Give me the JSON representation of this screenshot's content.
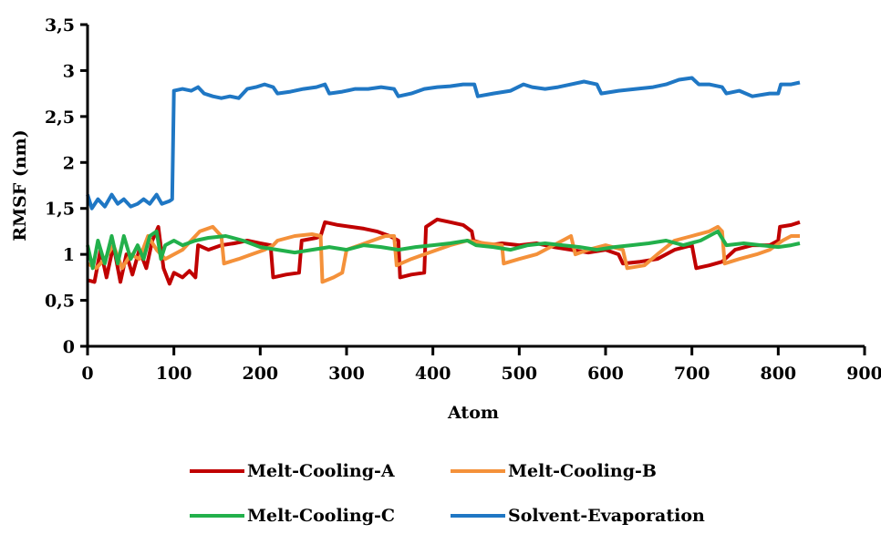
{
  "chart_data": {
    "type": "line",
    "xlabel": "Atom",
    "ylabel": "RMSF (nm)",
    "xlim": [
      0,
      900
    ],
    "ylim": [
      0,
      3.5
    ],
    "x_ticks": [
      "0",
      "100",
      "200",
      "300",
      "400",
      "500",
      "600",
      "700",
      "800",
      "900"
    ],
    "y_ticks": [
      "0",
      "0,5",
      "1",
      "1,5",
      "2",
      "2,5",
      "3",
      "3,5"
    ],
    "grid": false,
    "legend_position": "bottom",
    "series": [
      {
        "name": "Melt-Cooling-A",
        "color": "#c00000",
        "points": [
          [
            0,
            0.72
          ],
          [
            8,
            0.7
          ],
          [
            15,
            1.05
          ],
          [
            22,
            0.75
          ],
          [
            30,
            1.1
          ],
          [
            38,
            0.7
          ],
          [
            45,
            1.0
          ],
          [
            52,
            0.78
          ],
          [
            60,
            1.05
          ],
          [
            68,
            0.85
          ],
          [
            75,
            1.15
          ],
          [
            82,
            1.3
          ],
          [
            88,
            0.85
          ],
          [
            95,
            0.68
          ],
          [
            100,
            0.8
          ],
          [
            110,
            0.75
          ],
          [
            118,
            0.82
          ],
          [
            125,
            0.75
          ],
          [
            128,
            1.1
          ],
          [
            140,
            1.05
          ],
          [
            155,
            1.1
          ],
          [
            170,
            1.12
          ],
          [
            185,
            1.15
          ],
          [
            200,
            1.12
          ],
          [
            212,
            1.1
          ],
          [
            215,
            0.75
          ],
          [
            230,
            0.78
          ],
          [
            245,
            0.8
          ],
          [
            248,
            1.15
          ],
          [
            265,
            1.18
          ],
          [
            270,
            1.2
          ],
          [
            275,
            1.35
          ],
          [
            290,
            1.32
          ],
          [
            305,
            1.3
          ],
          [
            320,
            1.28
          ],
          [
            335,
            1.25
          ],
          [
            350,
            1.2
          ],
          [
            360,
            1.15
          ],
          [
            362,
            0.75
          ],
          [
            375,
            0.78
          ],
          [
            390,
            0.8
          ],
          [
            392,
            1.3
          ],
          [
            405,
            1.38
          ],
          [
            420,
            1.35
          ],
          [
            435,
            1.32
          ],
          [
            445,
            1.25
          ],
          [
            447,
            1.15
          ],
          [
            465,
            1.1
          ],
          [
            480,
            1.12
          ],
          [
            500,
            1.1
          ],
          [
            520,
            1.12
          ],
          [
            540,
            1.08
          ],
          [
            560,
            1.05
          ],
          [
            580,
            1.02
          ],
          [
            600,
            1.05
          ],
          [
            615,
            1.0
          ],
          [
            620,
            0.9
          ],
          [
            640,
            0.92
          ],
          [
            660,
            0.95
          ],
          [
            680,
            1.05
          ],
          [
            700,
            1.1
          ],
          [
            705,
            0.85
          ],
          [
            720,
            0.88
          ],
          [
            735,
            0.92
          ],
          [
            750,
            1.05
          ],
          [
            770,
            1.1
          ],
          [
            790,
            1.1
          ],
          [
            800,
            1.15
          ],
          [
            802,
            1.3
          ],
          [
            815,
            1.32
          ],
          [
            825,
            1.35
          ]
        ]
      },
      {
        "name": "Melt-Cooling-B",
        "color": "#f4913a",
        "points": [
          [
            0,
            0.9
          ],
          [
            10,
            0.85
          ],
          [
            20,
            0.95
          ],
          [
            30,
            1.1
          ],
          [
            40,
            0.85
          ],
          [
            50,
            1.0
          ],
          [
            60,
            0.95
          ],
          [
            70,
            1.2
          ],
          [
            80,
            1.05
          ],
          [
            90,
            0.95
          ],
          [
            100,
            1.0
          ],
          [
            110,
            1.05
          ],
          [
            120,
            1.15
          ],
          [
            130,
            1.25
          ],
          [
            145,
            1.3
          ],
          [
            155,
            1.2
          ],
          [
            158,
            0.9
          ],
          [
            175,
            0.95
          ],
          [
            190,
            1.0
          ],
          [
            205,
            1.05
          ],
          [
            215,
            1.1
          ],
          [
            220,
            1.15
          ],
          [
            240,
            1.2
          ],
          [
            260,
            1.22
          ],
          [
            270,
            1.2
          ],
          [
            272,
            0.7
          ],
          [
            285,
            0.75
          ],
          [
            295,
            0.8
          ],
          [
            300,
            1.05
          ],
          [
            315,
            1.1
          ],
          [
            330,
            1.15
          ],
          [
            345,
            1.2
          ],
          [
            355,
            1.2
          ],
          [
            358,
            0.88
          ],
          [
            375,
            0.95
          ],
          [
            390,
            1.0
          ],
          [
            405,
            1.05
          ],
          [
            420,
            1.1
          ],
          [
            440,
            1.15
          ],
          [
            460,
            1.12
          ],
          [
            480,
            1.1
          ],
          [
            482,
            0.9
          ],
          [
            500,
            0.95
          ],
          [
            520,
            1.0
          ],
          [
            540,
            1.1
          ],
          [
            560,
            1.2
          ],
          [
            565,
            1.0
          ],
          [
            580,
            1.05
          ],
          [
            600,
            1.1
          ],
          [
            620,
            1.05
          ],
          [
            625,
            0.85
          ],
          [
            645,
            0.88
          ],
          [
            660,
            1.0
          ],
          [
            680,
            1.15
          ],
          [
            700,
            1.2
          ],
          [
            720,
            1.25
          ],
          [
            730,
            1.3
          ],
          [
            735,
            1.25
          ],
          [
            738,
            0.9
          ],
          [
            755,
            0.95
          ],
          [
            775,
            1.0
          ],
          [
            790,
            1.05
          ],
          [
            805,
            1.15
          ],
          [
            815,
            1.2
          ],
          [
            825,
            1.2
          ]
        ]
      },
      {
        "name": "Melt-Cooling-C",
        "color": "#22b04b",
        "points": [
          [
            0,
            1.1
          ],
          [
            6,
            0.85
          ],
          [
            12,
            1.15
          ],
          [
            20,
            0.9
          ],
          [
            28,
            1.2
          ],
          [
            35,
            0.9
          ],
          [
            42,
            1.2
          ],
          [
            50,
            0.95
          ],
          [
            58,
            1.1
          ],
          [
            65,
            0.95
          ],
          [
            72,
            1.2
          ],
          [
            80,
            1.25
          ],
          [
            85,
            0.95
          ],
          [
            90,
            1.1
          ],
          [
            100,
            1.15
          ],
          [
            110,
            1.1
          ],
          [
            125,
            1.15
          ],
          [
            140,
            1.18
          ],
          [
            160,
            1.2
          ],
          [
            180,
            1.15
          ],
          [
            200,
            1.08
          ],
          [
            220,
            1.05
          ],
          [
            240,
            1.02
          ],
          [
            260,
            1.05
          ],
          [
            280,
            1.08
          ],
          [
            300,
            1.05
          ],
          [
            320,
            1.1
          ],
          [
            340,
            1.08
          ],
          [
            360,
            1.05
          ],
          [
            380,
            1.08
          ],
          [
            400,
            1.1
          ],
          [
            420,
            1.12
          ],
          [
            440,
            1.15
          ],
          [
            450,
            1.1
          ],
          [
            470,
            1.08
          ],
          [
            490,
            1.05
          ],
          [
            510,
            1.1
          ],
          [
            530,
            1.12
          ],
          [
            550,
            1.1
          ],
          [
            570,
            1.08
          ],
          [
            590,
            1.05
          ],
          [
            610,
            1.08
          ],
          [
            630,
            1.1
          ],
          [
            650,
            1.12
          ],
          [
            670,
            1.15
          ],
          [
            690,
            1.1
          ],
          [
            710,
            1.15
          ],
          [
            730,
            1.25
          ],
          [
            740,
            1.1
          ],
          [
            760,
            1.12
          ],
          [
            780,
            1.1
          ],
          [
            800,
            1.08
          ],
          [
            815,
            1.1
          ],
          [
            825,
            1.12
          ]
        ]
      },
      {
        "name": "Solvent-Evaporation",
        "color": "#1f77c4",
        "points": [
          [
            0,
            1.65
          ],
          [
            5,
            1.5
          ],
          [
            12,
            1.6
          ],
          [
            20,
            1.52
          ],
          [
            28,
            1.65
          ],
          [
            35,
            1.55
          ],
          [
            42,
            1.6
          ],
          [
            50,
            1.52
          ],
          [
            58,
            1.55
          ],
          [
            65,
            1.6
          ],
          [
            72,
            1.55
          ],
          [
            80,
            1.65
          ],
          [
            86,
            1.55
          ],
          [
            95,
            1.58
          ],
          [
            98,
            1.6
          ],
          [
            100,
            2.78
          ],
          [
            110,
            2.8
          ],
          [
            120,
            2.78
          ],
          [
            128,
            2.82
          ],
          [
            135,
            2.75
          ],
          [
            145,
            2.72
          ],
          [
            155,
            2.7
          ],
          [
            165,
            2.72
          ],
          [
            175,
            2.7
          ],
          [
            185,
            2.8
          ],
          [
            195,
            2.82
          ],
          [
            205,
            2.85
          ],
          [
            215,
            2.82
          ],
          [
            220,
            2.75
          ],
          [
            235,
            2.77
          ],
          [
            250,
            2.8
          ],
          [
            265,
            2.82
          ],
          [
            275,
            2.85
          ],
          [
            280,
            2.75
          ],
          [
            295,
            2.77
          ],
          [
            310,
            2.8
          ],
          [
            325,
            2.8
          ],
          [
            340,
            2.82
          ],
          [
            355,
            2.8
          ],
          [
            360,
            2.72
          ],
          [
            375,
            2.75
          ],
          [
            390,
            2.8
          ],
          [
            405,
            2.82
          ],
          [
            420,
            2.83
          ],
          [
            435,
            2.85
          ],
          [
            448,
            2.85
          ],
          [
            452,
            2.72
          ],
          [
            470,
            2.75
          ],
          [
            490,
            2.78
          ],
          [
            505,
            2.85
          ],
          [
            515,
            2.82
          ],
          [
            530,
            2.8
          ],
          [
            545,
            2.82
          ],
          [
            560,
            2.85
          ],
          [
            575,
            2.88
          ],
          [
            590,
            2.85
          ],
          [
            595,
            2.75
          ],
          [
            615,
            2.78
          ],
          [
            635,
            2.8
          ],
          [
            655,
            2.82
          ],
          [
            670,
            2.85
          ],
          [
            685,
            2.9
          ],
          [
            700,
            2.92
          ],
          [
            708,
            2.85
          ],
          [
            720,
            2.85
          ],
          [
            735,
            2.82
          ],
          [
            740,
            2.75
          ],
          [
            755,
            2.78
          ],
          [
            770,
            2.72
          ],
          [
            790,
            2.75
          ],
          [
            800,
            2.75
          ],
          [
            803,
            2.85
          ],
          [
            815,
            2.85
          ],
          [
            825,
            2.87
          ]
        ]
      }
    ]
  }
}
